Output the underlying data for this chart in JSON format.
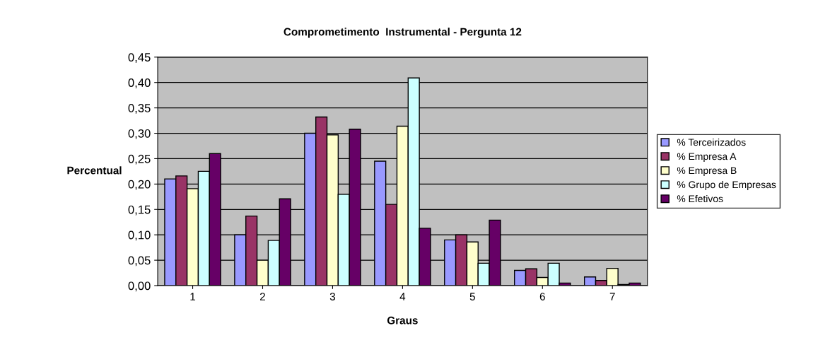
{
  "chart_data": {
    "type": "bar",
    "title": "Comprometimento  Instrumental - Pergunta 12",
    "xlabel": "Graus",
    "ylabel": "Percentual",
    "categories": [
      "1",
      "2",
      "3",
      "4",
      "5",
      "6",
      "7"
    ],
    "series": [
      {
        "name": "% Terceirizados",
        "color": "#9999ff",
        "values": [
          0.21,
          0.1,
          0.3,
          0.245,
          0.09,
          0.03,
          0.017
        ]
      },
      {
        "name": "% Empresa A",
        "color": "#993366",
        "values": [
          0.216,
          0.137,
          0.332,
          0.16,
          0.1,
          0.033,
          0.01
        ]
      },
      {
        "name": "% Empresa B",
        "color": "#ffffcc",
        "values": [
          0.191,
          0.05,
          0.297,
          0.314,
          0.086,
          0.016,
          0.034
        ]
      },
      {
        "name": "% Grupo de Empresas",
        "color": "#ccffff",
        "values": [
          0.225,
          0.089,
          0.18,
          0.409,
          0.044,
          0.044,
          0.002
        ]
      },
      {
        "name": "% Efetivos",
        "color": "#660066",
        "values": [
          0.26,
          0.171,
          0.308,
          0.113,
          0.129,
          0.005,
          0.005
        ]
      }
    ],
    "ylim": [
      0,
      0.45
    ],
    "yticks": [
      {
        "value": 0,
        "label": "0,00"
      },
      {
        "value": 0.05,
        "label": "0,05"
      },
      {
        "value": 0.1,
        "label": "0,10"
      },
      {
        "value": 0.15,
        "label": "0,15"
      },
      {
        "value": 0.2,
        "label": "0,20"
      },
      {
        "value": 0.25,
        "label": "0,25"
      },
      {
        "value": 0.3,
        "label": "0,30"
      },
      {
        "value": 0.35,
        "label": "0,35"
      },
      {
        "value": 0.4,
        "label": "0,40"
      },
      {
        "value": 0.45,
        "label": "0,45"
      }
    ],
    "grid": "y",
    "legend": "right"
  }
}
